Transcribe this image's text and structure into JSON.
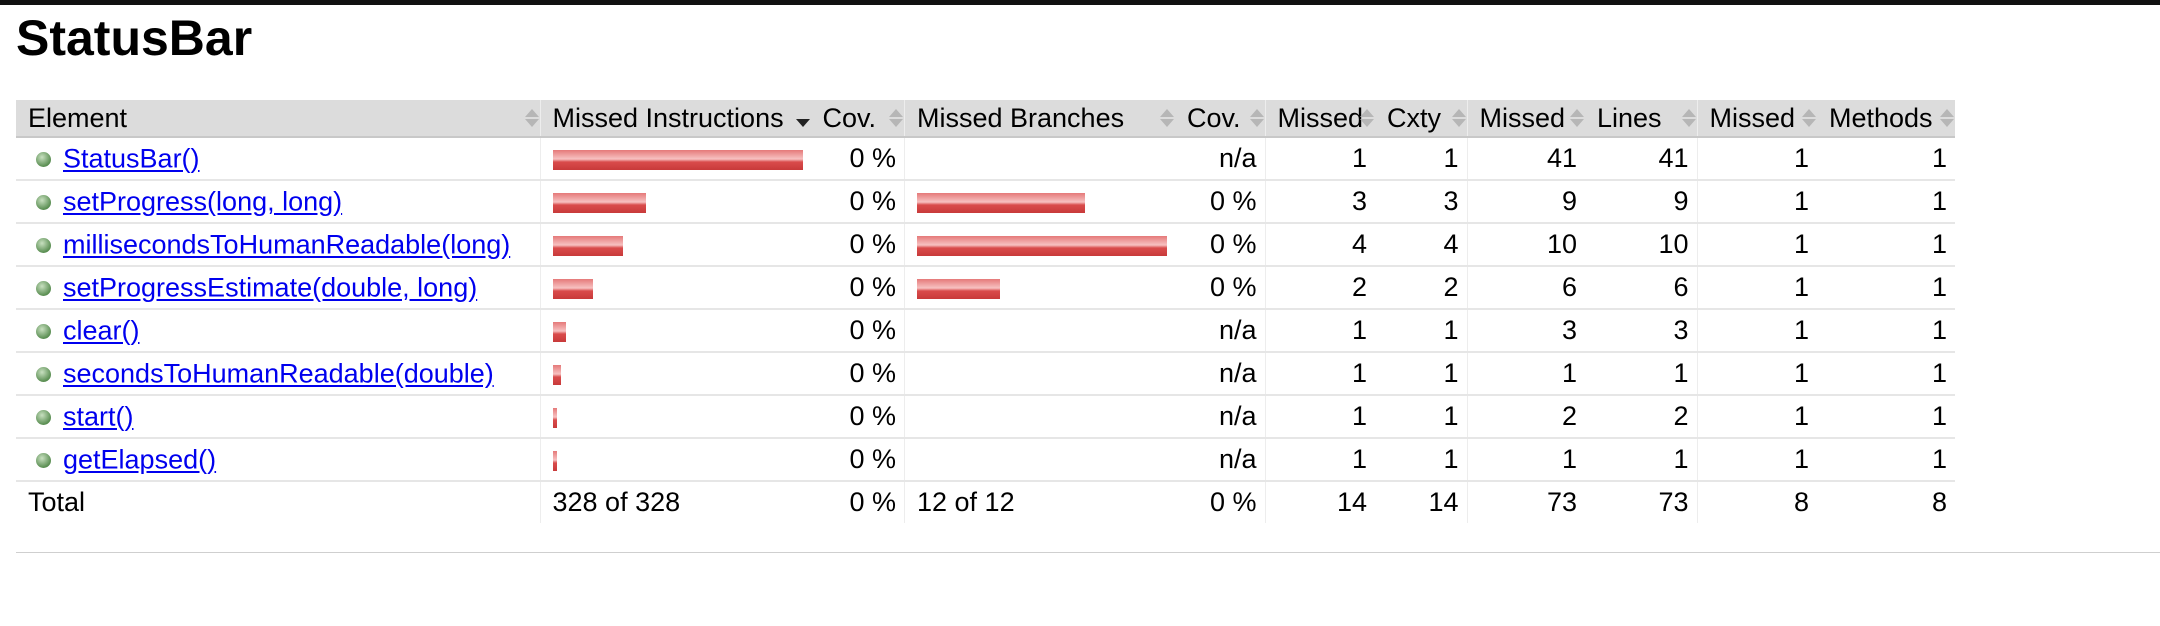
{
  "page_title": "StatusBar",
  "columns": [
    "Element",
    "Missed Instructions",
    "Cov.",
    "Missed Branches",
    "Cov.",
    "Missed",
    "Cxty",
    "Missed",
    "Lines",
    "Missed",
    "Methods"
  ],
  "rows": [
    {
      "name": "StatusBar()",
      "instr_fraction": 1.0,
      "instr_cov": "0 %",
      "branch_fraction": null,
      "branch_cov": "n/a",
      "missed_cxty": "1",
      "cxty": "1",
      "missed_lines": "41",
      "lines": "41",
      "missed_methods": "1",
      "methods": "1"
    },
    {
      "name": "setProgress(long, long)",
      "instr_fraction": 0.37,
      "instr_cov": "0 %",
      "branch_fraction": 0.67,
      "branch_cov": "0 %",
      "missed_cxty": "3",
      "cxty": "3",
      "missed_lines": "9",
      "lines": "9",
      "missed_methods": "1",
      "methods": "1"
    },
    {
      "name": "millisecondsToHumanReadable(long)",
      "instr_fraction": 0.28,
      "instr_cov": "0 %",
      "branch_fraction": 1.0,
      "branch_cov": "0 %",
      "missed_cxty": "4",
      "cxty": "4",
      "missed_lines": "10",
      "lines": "10",
      "missed_methods": "1",
      "methods": "1"
    },
    {
      "name": "setProgressEstimate(double, long)",
      "instr_fraction": 0.16,
      "instr_cov": "0 %",
      "branch_fraction": 0.33,
      "branch_cov": "0 %",
      "missed_cxty": "2",
      "cxty": "2",
      "missed_lines": "6",
      "lines": "6",
      "missed_methods": "1",
      "methods": "1"
    },
    {
      "name": "clear()",
      "instr_fraction": 0.05,
      "instr_cov": "0 %",
      "branch_fraction": null,
      "branch_cov": "n/a",
      "missed_cxty": "1",
      "cxty": "1",
      "missed_lines": "3",
      "lines": "3",
      "missed_methods": "1",
      "methods": "1"
    },
    {
      "name": "secondsToHumanReadable(double)",
      "instr_fraction": 0.03,
      "instr_cov": "0 %",
      "branch_fraction": null,
      "branch_cov": "n/a",
      "missed_cxty": "1",
      "cxty": "1",
      "missed_lines": "1",
      "lines": "1",
      "missed_methods": "1",
      "methods": "1"
    },
    {
      "name": "start()",
      "instr_fraction": 0.015,
      "instr_cov": "0 %",
      "branch_fraction": null,
      "branch_cov": "n/a",
      "missed_cxty": "1",
      "cxty": "1",
      "missed_lines": "2",
      "lines": "2",
      "missed_methods": "1",
      "methods": "1"
    },
    {
      "name": "getElapsed()",
      "instr_fraction": 0.015,
      "instr_cov": "0 %",
      "branch_fraction": null,
      "branch_cov": "n/a",
      "missed_cxty": "1",
      "cxty": "1",
      "missed_lines": "1",
      "lines": "1",
      "missed_methods": "1",
      "methods": "1"
    }
  ],
  "total": {
    "label": "Total",
    "instr": "328 of 328",
    "instr_cov": "0 %",
    "branch": "12 of 12",
    "branch_cov": "0 %",
    "missed_cxty": "14",
    "cxty": "14",
    "missed_lines": "73",
    "lines": "73",
    "missed_methods": "8",
    "methods": "8"
  },
  "colors": {
    "bar_red": "#d94b4b",
    "link": "#0000ee",
    "header_bg": "#dcdcdc",
    "method_dot": "#5a8e52"
  },
  "icons": {
    "method": "green-dot-icon",
    "sort": "sort-arrows-icon"
  }
}
